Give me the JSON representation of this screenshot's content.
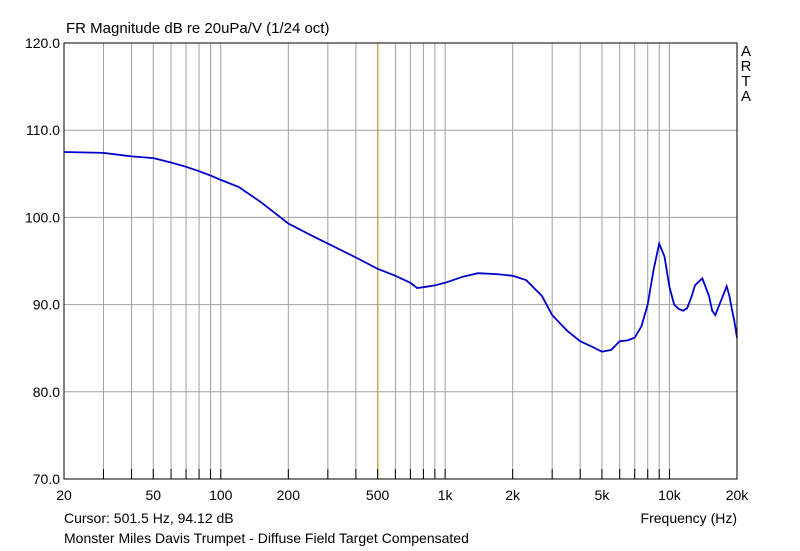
{
  "header": {
    "title": "FR Magnitude dB re 20uPa/V (1/24 oct)",
    "watermark": [
      "A",
      "R",
      "T",
      "A"
    ]
  },
  "footer": {
    "cursor": "Cursor: 501.5 Hz, 94.12 dB",
    "x_unit": "Frequency (Hz)",
    "caption": "Monster Miles Davis Trumpet - Diffuse Field Target Compensated"
  },
  "colors": {
    "background": "#ffffff",
    "grid": "#a0a0a0",
    "curve": "#0000cc",
    "cursor": "#d4a017"
  },
  "chart_data": {
    "type": "line",
    "title": "FR Magnitude dB re 20uPa/V (1/24 oct)",
    "xlabel": "Frequency (Hz)",
    "ylabel": "",
    "x_scale": "log",
    "xlim": [
      20,
      20000
    ],
    "ylim": [
      70,
      120
    ],
    "grid": true,
    "x_ticks": [
      20,
      50,
      100,
      200,
      500,
      1000,
      2000,
      5000,
      10000,
      20000
    ],
    "x_tick_labels": [
      "20",
      "50",
      "100",
      "200",
      "500",
      "1k",
      "2k",
      "5k",
      "10k",
      "20k"
    ],
    "x_minor_ticks": [
      30,
      40,
      60,
      70,
      80,
      90,
      300,
      400,
      600,
      700,
      800,
      900,
      3000,
      4000,
      6000,
      7000,
      8000,
      9000
    ],
    "y_ticks": [
      70,
      80,
      90,
      100,
      110,
      120
    ],
    "y_tick_labels": [
      "70.0",
      "80.0",
      "90.0",
      "100.0",
      "110.0",
      "120.0"
    ],
    "cursor": {
      "x": 501.5,
      "y": 94.12
    },
    "series": [
      {
        "x": [
          20,
          30,
          40,
          50,
          60,
          70,
          80,
          90,
          100,
          120,
          150,
          200,
          250,
          300,
          400,
          500,
          600,
          700,
          750,
          800,
          900,
          1000,
          1200,
          1400,
          1700,
          2000,
          2300,
          2700,
          3000,
          3500,
          4000,
          4500,
          5000,
          5500,
          6000,
          6500,
          7000,
          7500,
          8000,
          8500,
          9000,
          9500,
          10000,
          10500,
          11000,
          11500,
          12000,
          12500,
          13000,
          14000,
          15000,
          15500,
          16000,
          17000,
          18000,
          18500,
          19000,
          19500,
          20000
        ],
        "y": [
          107.5,
          107.4,
          107.0,
          106.8,
          106.3,
          105.8,
          105.3,
          104.8,
          104.3,
          103.5,
          101.8,
          99.3,
          98.0,
          97.0,
          95.4,
          94.1,
          93.3,
          92.5,
          91.9,
          92.0,
          92.2,
          92.5,
          93.2,
          93.6,
          93.5,
          93.3,
          92.8,
          91.0,
          88.8,
          87.0,
          85.8,
          85.2,
          84.6,
          84.8,
          85.8,
          85.9,
          86.2,
          87.5,
          90.0,
          94.0,
          97.0,
          95.5,
          92.0,
          90.0,
          89.5,
          89.3,
          89.6,
          90.8,
          92.2,
          93.0,
          91.0,
          89.3,
          88.8,
          90.5,
          92.1,
          91.0,
          89.4,
          88.0,
          86.2
        ]
      }
    ]
  }
}
